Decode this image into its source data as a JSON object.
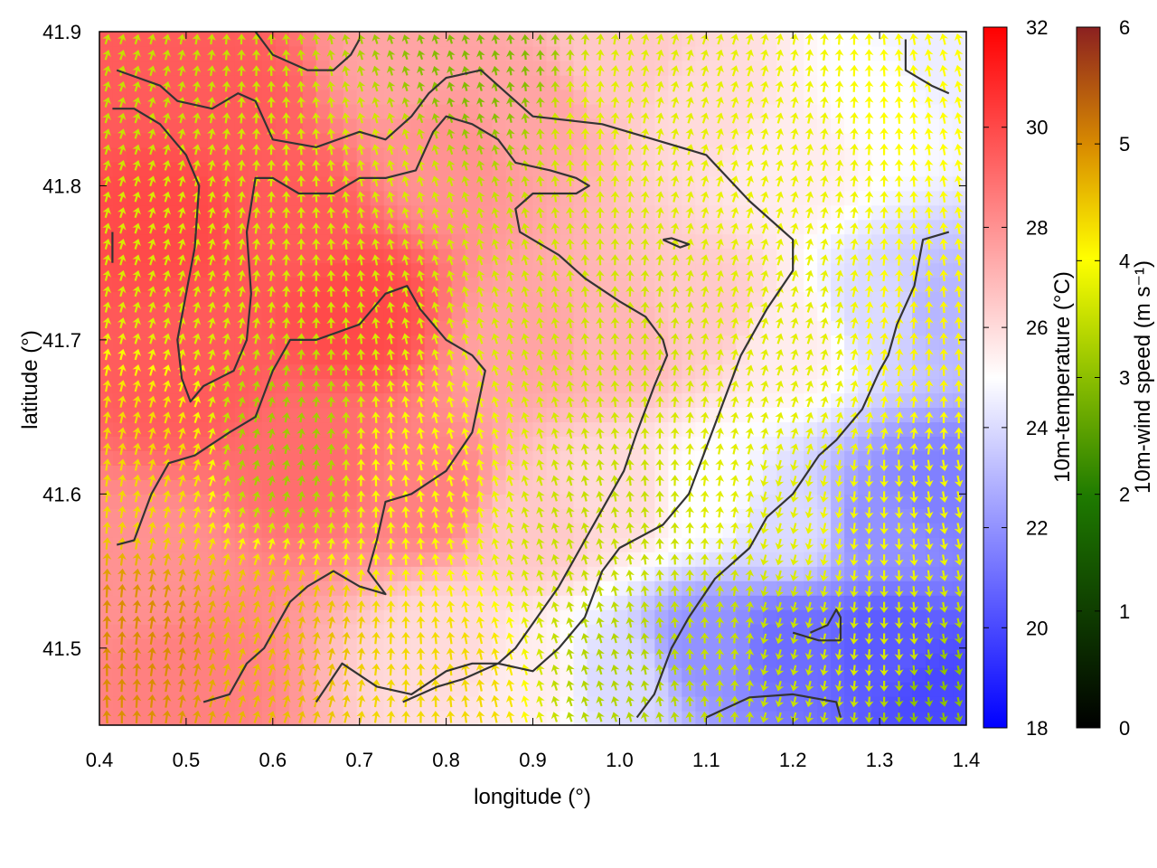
{
  "chart_data": {
    "type": "heatmap",
    "title": "",
    "xlabel": "longitude (°)",
    "ylabel": "latitude (°)",
    "xlim": [
      0.4,
      1.4
    ],
    "ylim": [
      41.45,
      41.9
    ],
    "x_ticks": [
      "0.4",
      "0.5",
      "0.6",
      "0.7",
      "0.8",
      "0.9",
      "1.0",
      "1.1",
      "1.2",
      "1.3",
      "1.4"
    ],
    "y_ticks": [
      "41.5",
      "41.6",
      "41.7",
      "41.8",
      "41.9"
    ],
    "x_tick_values": [
      0.4,
      0.5,
      0.6,
      0.7,
      0.8,
      0.9,
      1.0,
      1.1,
      1.2,
      1.3,
      1.4
    ],
    "y_tick_values": [
      41.5,
      41.6,
      41.7,
      41.8,
      41.9
    ],
    "grid": false,
    "temperature_colorbar": {
      "label": "10m-temperature (°C)",
      "range": [
        18,
        32
      ],
      "ticks": [
        "18",
        "20",
        "22",
        "24",
        "26",
        "28",
        "30",
        "32"
      ],
      "tick_values": [
        18,
        20,
        22,
        24,
        26,
        28,
        30,
        32
      ],
      "palette": [
        "#0000ff",
        "#ffffff",
        "#ff0000"
      ]
    },
    "wind_colorbar": {
      "label": "10m-wind speed (m s⁻¹)",
      "range": [
        0,
        6
      ],
      "ticks": [
        "0",
        "1",
        "2",
        "3",
        "4",
        "5",
        "6"
      ],
      "tick_values": [
        0,
        1,
        2,
        3,
        4,
        5,
        6
      ],
      "palette": [
        "#000000",
        "#1e7a00",
        "#8cbf00",
        "#ffff00",
        "#d98c00",
        "#8b2020"
      ]
    },
    "temperature_field_estimate": [
      {
        "lon": 0.42,
        "lat": 41.88,
        "t": 29.5
      },
      {
        "lon": 0.48,
        "lat": 41.78,
        "t": 30.0
      },
      {
        "lon": 0.5,
        "lat": 41.68,
        "t": 29.5
      },
      {
        "lon": 0.55,
        "lat": 41.86,
        "t": 29.5
      },
      {
        "lon": 0.62,
        "lat": 41.78,
        "t": 29.5
      },
      {
        "lon": 0.7,
        "lat": 41.72,
        "t": 30.0
      },
      {
        "lon": 0.78,
        "lat": 41.6,
        "t": 28.5
      },
      {
        "lon": 0.65,
        "lat": 41.62,
        "t": 29.0
      },
      {
        "lon": 0.45,
        "lat": 41.55,
        "t": 28.0
      },
      {
        "lon": 0.5,
        "lat": 41.48,
        "t": 28.5
      },
      {
        "lon": 0.8,
        "lat": 41.82,
        "t": 28.0
      },
      {
        "lon": 0.75,
        "lat": 41.88,
        "t": 27.5
      },
      {
        "lon": 0.9,
        "lat": 41.85,
        "t": 27.5
      },
      {
        "lon": 1.0,
        "lat": 41.88,
        "t": 26.5
      },
      {
        "lon": 1.1,
        "lat": 41.85,
        "t": 26.0
      },
      {
        "lon": 1.2,
        "lat": 41.82,
        "t": 25.5
      },
      {
        "lon": 1.3,
        "lat": 41.86,
        "t": 25.0
      },
      {
        "lon": 1.37,
        "lat": 41.88,
        "t": 24.5
      },
      {
        "lon": 0.9,
        "lat": 41.7,
        "t": 27.5
      },
      {
        "lon": 1.0,
        "lat": 41.7,
        "t": 27.0
      },
      {
        "lon": 1.1,
        "lat": 41.72,
        "t": 26.5
      },
      {
        "lon": 1.2,
        "lat": 41.7,
        "t": 25.5
      },
      {
        "lon": 1.3,
        "lat": 41.72,
        "t": 24.0
      },
      {
        "lon": 1.37,
        "lat": 41.72,
        "t": 23.0
      },
      {
        "lon": 0.9,
        "lat": 41.58,
        "t": 26.5
      },
      {
        "lon": 1.0,
        "lat": 41.6,
        "t": 26.0
      },
      {
        "lon": 1.1,
        "lat": 41.6,
        "t": 25.0
      },
      {
        "lon": 1.2,
        "lat": 41.58,
        "t": 24.0
      },
      {
        "lon": 1.3,
        "lat": 41.58,
        "t": 22.0
      },
      {
        "lon": 1.37,
        "lat": 41.6,
        "t": 21.5
      },
      {
        "lon": 0.8,
        "lat": 41.5,
        "t": 26.0
      },
      {
        "lon": 0.9,
        "lat": 41.48,
        "t": 25.5
      },
      {
        "lon": 1.0,
        "lat": 41.48,
        "t": 24.0
      },
      {
        "lon": 1.1,
        "lat": 41.5,
        "t": 22.0
      },
      {
        "lon": 1.2,
        "lat": 41.5,
        "t": 21.0
      },
      {
        "lon": 1.3,
        "lat": 41.5,
        "t": 20.5
      },
      {
        "lon": 1.37,
        "lat": 41.47,
        "t": 20.0
      }
    ],
    "wind_field_estimate": [
      {
        "lon": 0.42,
        "lat": 41.88,
        "speed": 3.0
      },
      {
        "lon": 0.5,
        "lat": 41.75,
        "speed": 3.2
      },
      {
        "lon": 0.7,
        "lat": 41.8,
        "speed": 3.2
      },
      {
        "lon": 0.62,
        "lat": 41.63,
        "speed": 2.6
      },
      {
        "lon": 0.45,
        "lat": 41.62,
        "speed": 4.0
      },
      {
        "lon": 0.45,
        "lat": 41.5,
        "speed": 4.8
      },
      {
        "lon": 0.6,
        "lat": 41.5,
        "speed": 4.3
      },
      {
        "lon": 0.8,
        "lat": 41.47,
        "speed": 4.0
      },
      {
        "lon": 0.75,
        "lat": 41.62,
        "speed": 3.6
      },
      {
        "lon": 0.85,
        "lat": 41.88,
        "speed": 2.3
      },
      {
        "lon": 1.0,
        "lat": 41.85,
        "speed": 3.3
      },
      {
        "lon": 1.2,
        "lat": 41.82,
        "speed": 3.4
      },
      {
        "lon": 1.35,
        "lat": 41.85,
        "speed": 3.6
      },
      {
        "lon": 1.0,
        "lat": 41.7,
        "speed": 3.1
      },
      {
        "lon": 1.2,
        "lat": 41.7,
        "speed": 3.3
      },
      {
        "lon": 1.35,
        "lat": 41.7,
        "speed": 3.7
      },
      {
        "lon": 1.0,
        "lat": 41.58,
        "speed": 3.0
      },
      {
        "lon": 1.15,
        "lat": 41.6,
        "speed": 3.3
      },
      {
        "lon": 1.3,
        "lat": 41.58,
        "speed": 3.5
      },
      {
        "lon": 1.0,
        "lat": 41.48,
        "speed": 2.8
      },
      {
        "lon": 1.15,
        "lat": 41.5,
        "speed": 3.0
      },
      {
        "lon": 1.3,
        "lat": 41.5,
        "speed": 3.2
      },
      {
        "lon": 1.37,
        "lat": 41.47,
        "speed": 2.4
      }
    ],
    "contours": [
      [
        [
          0.42,
          41.875
        ],
        [
          0.47,
          41.865
        ],
        [
          0.49,
          41.855
        ],
        [
          0.53,
          41.85
        ],
        [
          0.56,
          41.86
        ],
        [
          0.58,
          41.855
        ],
        [
          0.6,
          41.83
        ],
        [
          0.65,
          41.825
        ],
        [
          0.7,
          41.835
        ],
        [
          0.73,
          41.83
        ],
        [
          0.76,
          41.845
        ],
        [
          0.78,
          41.86
        ],
        [
          0.8,
          41.87
        ],
        [
          0.84,
          41.875
        ],
        [
          0.87,
          41.86
        ],
        [
          0.9,
          41.845
        ],
        [
          0.98,
          41.84
        ],
        [
          1.04,
          41.83
        ],
        [
          1.1,
          41.82
        ],
        [
          1.15,
          41.79
        ],
        [
          1.2,
          41.765
        ],
        [
          1.2,
          41.745
        ],
        [
          1.17,
          41.72
        ],
        [
          1.14,
          41.69
        ],
        [
          1.12,
          41.66
        ],
        [
          1.1,
          41.63
        ],
        [
          1.08,
          41.6
        ],
        [
          1.05,
          41.58
        ],
        [
          1.0,
          41.565
        ],
        [
          0.98,
          41.55
        ],
        [
          0.96,
          41.52
        ],
        [
          0.93,
          41.5
        ],
        [
          0.9,
          41.485
        ],
        [
          0.86,
          41.49
        ],
        [
          0.82,
          41.48
        ],
        [
          0.79,
          41.475
        ],
        [
          0.75,
          41.465
        ]
      ],
      [
        [
          0.415,
          41.85
        ],
        [
          0.44,
          41.85
        ],
        [
          0.47,
          41.84
        ],
        [
          0.5,
          41.82
        ],
        [
          0.515,
          41.8
        ],
        [
          0.51,
          41.76
        ],
        [
          0.5,
          41.73
        ],
        [
          0.49,
          41.7
        ],
        [
          0.495,
          41.675
        ],
        [
          0.505,
          41.66
        ],
        [
          0.52,
          41.67
        ],
        [
          0.555,
          41.68
        ],
        [
          0.57,
          41.7
        ],
        [
          0.575,
          41.73
        ],
        [
          0.57,
          41.77
        ],
        [
          0.58,
          41.805
        ],
        [
          0.6,
          41.805
        ],
        [
          0.63,
          41.795
        ],
        [
          0.67,
          41.795
        ],
        [
          0.7,
          41.805
        ],
        [
          0.73,
          41.805
        ],
        [
          0.765,
          41.81
        ],
        [
          0.785,
          41.835
        ],
        [
          0.8,
          41.845
        ],
        [
          0.83,
          41.84
        ],
        [
          0.86,
          41.83
        ],
        [
          0.88,
          41.815
        ],
        [
          0.92,
          41.81
        ],
        [
          0.95,
          41.805
        ],
        [
          0.965,
          41.8
        ],
        [
          0.95,
          41.795
        ],
        [
          0.9,
          41.795
        ],
        [
          0.88,
          41.785
        ],
        [
          0.885,
          41.77
        ],
        [
          0.9,
          41.765
        ],
        [
          0.93,
          41.755
        ],
        [
          0.96,
          41.74
        ],
        [
          1.0,
          41.725
        ],
        [
          1.03,
          41.715
        ],
        [
          1.05,
          41.7
        ],
        [
          1.055,
          41.69
        ],
        [
          1.04,
          41.67
        ],
        [
          1.02,
          41.64
        ],
        [
          1.005,
          41.615
        ],
        [
          0.98,
          41.59
        ],
        [
          0.96,
          41.57
        ],
        [
          0.93,
          41.54
        ],
        [
          0.905,
          41.52
        ],
        [
          0.88,
          41.5
        ],
        [
          0.86,
          41.49
        ],
        [
          0.83,
          41.49
        ],
        [
          0.8,
          41.485
        ],
        [
          0.76,
          41.47
        ],
        [
          0.72,
          41.475
        ],
        [
          0.68,
          41.49
        ],
        [
          0.65,
          41.465
        ]
      ],
      [
        [
          0.42,
          41.567
        ],
        [
          0.44,
          41.57
        ],
        [
          0.46,
          41.6
        ],
        [
          0.48,
          41.62
        ],
        [
          0.51,
          41.625
        ],
        [
          0.55,
          41.64
        ],
        [
          0.58,
          41.65
        ],
        [
          0.6,
          41.68
        ],
        [
          0.62,
          41.7
        ],
        [
          0.65,
          41.7
        ],
        [
          0.7,
          41.71
        ],
        [
          0.73,
          41.73
        ],
        [
          0.755,
          41.735
        ],
        [
          0.77,
          41.72
        ],
        [
          0.8,
          41.7
        ],
        [
          0.83,
          41.69
        ],
        [
          0.845,
          41.68
        ],
        [
          0.83,
          41.64
        ],
        [
          0.8,
          41.615
        ],
        [
          0.76,
          41.6
        ],
        [
          0.73,
          41.595
        ],
        [
          0.72,
          41.57
        ],
        [
          0.71,
          41.55
        ],
        [
          0.73,
          41.535
        ],
        [
          0.7,
          41.54
        ],
        [
          0.67,
          41.55
        ],
        [
          0.64,
          41.54
        ],
        [
          0.62,
          41.53
        ],
        [
          0.6,
          41.51
        ],
        [
          0.59,
          41.5
        ],
        [
          0.57,
          41.49
        ],
        [
          0.55,
          41.47
        ],
        [
          0.52,
          41.465
        ]
      ],
      [
        [
          1.02,
          41.455
        ],
        [
          1.04,
          41.47
        ],
        [
          1.06,
          41.5
        ],
        [
          1.08,
          41.52
        ],
        [
          1.11,
          41.545
        ],
        [
          1.15,
          41.565
        ],
        [
          1.17,
          41.585
        ],
        [
          1.2,
          41.6
        ],
        [
          1.23,
          41.625
        ],
        [
          1.25,
          41.635
        ],
        [
          1.28,
          41.655
        ],
        [
          1.3,
          41.68
        ],
        [
          1.31,
          41.69
        ],
        [
          1.32,
          41.71
        ],
        [
          1.34,
          41.735
        ],
        [
          1.35,
          41.765
        ],
        [
          1.38,
          41.77
        ]
      ],
      [
        [
          0.58,
          41.9
        ],
        [
          0.6,
          41.885
        ],
        [
          0.62,
          41.88
        ],
        [
          0.64,
          41.875
        ],
        [
          0.67,
          41.875
        ],
        [
          0.69,
          41.885
        ],
        [
          0.7,
          41.895
        ]
      ],
      [
        [
          1.1,
          41.455
        ],
        [
          1.15,
          41.468
        ],
        [
          1.2,
          41.47
        ],
        [
          1.25,
          41.465
        ],
        [
          1.255,
          41.455
        ]
      ],
      [
        [
          1.22,
          41.51
        ],
        [
          1.24,
          41.515
        ],
        [
          1.25,
          41.525
        ],
        [
          1.255,
          41.52
        ],
        [
          1.255,
          41.505
        ],
        [
          1.23,
          41.505
        ],
        [
          1.2,
          41.51
        ]
      ],
      [
        [
          1.33,
          41.895
        ],
        [
          1.33,
          41.875
        ],
        [
          1.36,
          41.865
        ],
        [
          1.38,
          41.86
        ]
      ],
      [
        [
          1.05,
          41.765
        ],
        [
          1.07,
          41.76
        ],
        [
          1.08,
          41.762
        ],
        [
          1.06,
          41.766
        ],
        [
          1.05,
          41.765
        ]
      ],
      [
        [
          0.415,
          41.77
        ],
        [
          0.415,
          41.75
        ]
      ]
    ]
  }
}
